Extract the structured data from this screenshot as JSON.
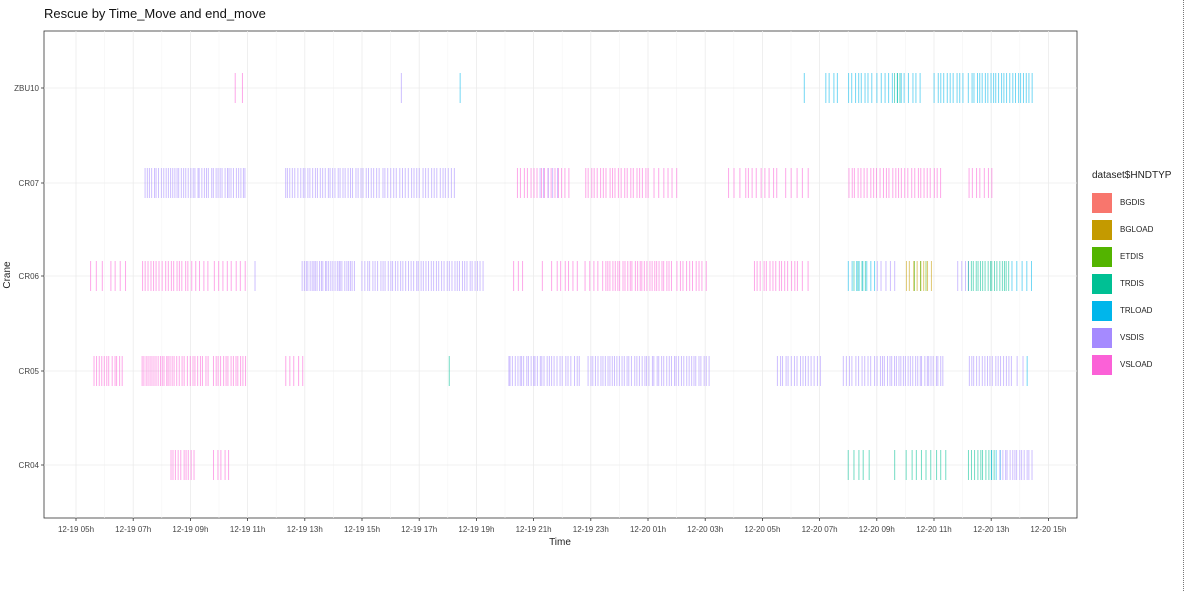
{
  "title": "Rescue by Time_Move and end_move",
  "colors": {
    "BGDIS": "#F8766D",
    "BGLOAD": "#C49A00",
    "ETDIS": "#53B400",
    "TRDIS": "#00C094",
    "TRLOAD": "#00B6EB",
    "VSDIS": "#A58AFF",
    "VSLOAD": "#FB61D7"
  },
  "chart_data": {
    "type": "bar",
    "subtype": "timeline-segments",
    "xlabel": "Time",
    "ylabel": "Crane",
    "x_ticks": [
      "12-19 05h",
      "12-19 07h",
      "12-19 09h",
      "12-19 11h",
      "12-19 13h",
      "12-19 15h",
      "12-19 17h",
      "12-19 19h",
      "12-19 21h",
      "12-19 23h",
      "12-20 01h",
      "12-20 03h",
      "12-20 05h",
      "12-20 07h",
      "12-20 09h",
      "12-20 11h",
      "12-20 13h",
      "12-20 15h"
    ],
    "xlim_hours_from_12-19_00h": [
      4,
      40
    ],
    "categories": [
      "ZBU10",
      "CR07",
      "CR06",
      "CR05",
      "CR04"
    ],
    "grid": true,
    "legend": {
      "title": "dataset$HNDTYP",
      "position": "right",
      "entries": [
        "BGDIS",
        "BGLOAD",
        "ETDIS",
        "TRDIS",
        "TRLOAD",
        "VSDIS",
        "VSLOAD"
      ]
    },
    "series": [
      {
        "crane": "ZBU10",
        "segments": [
          {
            "type": "VSLOAD",
            "start": 10.55,
            "end": 10.8,
            "count": 2
          },
          {
            "type": "VSDIS",
            "start": 16.35,
            "end": 16.4,
            "count": 1
          },
          {
            "type": "TRLOAD",
            "start": 18.4,
            "end": 18.45,
            "count": 1
          },
          {
            "type": "TRLOAD",
            "start": 30.4,
            "end": 30.5,
            "count": 1
          },
          {
            "type": "TRLOAD",
            "start": 31.2,
            "end": 31.6,
            "count": 4
          },
          {
            "type": "TRLOAD",
            "start": 32.0,
            "end": 32.8,
            "count": 8
          },
          {
            "type": "TRLOAD",
            "start": 33.0,
            "end": 34.5,
            "count": 12
          },
          {
            "type": "TRDIS",
            "start": 33.6,
            "end": 33.8,
            "count": 3
          },
          {
            "type": "TRLOAD",
            "start": 35.0,
            "end": 36.0,
            "count": 10
          },
          {
            "type": "TRLOAD",
            "start": 36.2,
            "end": 38.4,
            "count": 24
          }
        ]
      },
      {
        "crane": "CR07",
        "segments": [
          {
            "type": "VSDIS",
            "start": 7.4,
            "end": 10.9,
            "count": 45
          },
          {
            "type": "VSDIS",
            "start": 12.3,
            "end": 15.2,
            "count": 34
          },
          {
            "type": "VSDIS",
            "start": 15.3,
            "end": 18.2,
            "count": 30
          },
          {
            "type": "VSLOAD",
            "start": 20.4,
            "end": 22.2,
            "count": 16
          },
          {
            "type": "VSDIS",
            "start": 21.2,
            "end": 21.8,
            "count": 5
          },
          {
            "type": "VSLOAD",
            "start": 22.8,
            "end": 25.0,
            "count": 22
          },
          {
            "type": "VSLOAD",
            "start": 25.2,
            "end": 26.0,
            "count": 6
          },
          {
            "type": "VSLOAD",
            "start": 27.8,
            "end": 28.4,
            "count": 4
          },
          {
            "type": "VSLOAD",
            "start": 28.5,
            "end": 29.5,
            "count": 8
          },
          {
            "type": "VSLOAD",
            "start": 29.8,
            "end": 30.6,
            "count": 5
          },
          {
            "type": "VSLOAD",
            "start": 32.0,
            "end": 33.2,
            "count": 12
          },
          {
            "type": "VSLOAD",
            "start": 33.3,
            "end": 35.2,
            "count": 18
          },
          {
            "type": "VSLOAD",
            "start": 36.2,
            "end": 37.0,
            "count": 7
          }
        ]
      },
      {
        "crane": "CR06",
        "segments": [
          {
            "type": "VSLOAD",
            "start": 5.5,
            "end": 5.9,
            "count": 3
          },
          {
            "type": "VSLOAD",
            "start": 6.2,
            "end": 6.7,
            "count": 4
          },
          {
            "type": "VSLOAD",
            "start": 7.3,
            "end": 8.8,
            "count": 16
          },
          {
            "type": "VSLOAD",
            "start": 8.9,
            "end": 9.6,
            "count": 6
          },
          {
            "type": "VSLOAD",
            "start": 9.8,
            "end": 10.9,
            "count": 8
          },
          {
            "type": "VSDIS",
            "start": 11.2,
            "end": 11.3,
            "count": 1
          },
          {
            "type": "VSDIS",
            "start": 12.9,
            "end": 14.7,
            "count": 28
          },
          {
            "type": "VSDIS",
            "start": 15.0,
            "end": 19.2,
            "count": 48
          },
          {
            "type": "VSLOAD",
            "start": 20.3,
            "end": 20.6,
            "count": 3
          },
          {
            "type": "VSLOAD",
            "start": 21.3,
            "end": 21.6,
            "count": 2
          },
          {
            "type": "VSLOAD",
            "start": 21.8,
            "end": 22.5,
            "count": 6
          },
          {
            "type": "VSLOAD",
            "start": 22.8,
            "end": 23.4,
            "count": 5
          },
          {
            "type": "VSLOAD",
            "start": 23.5,
            "end": 25.8,
            "count": 28
          },
          {
            "type": "VSLOAD",
            "start": 26.0,
            "end": 27.0,
            "count": 10
          },
          {
            "type": "VSLOAD",
            "start": 28.7,
            "end": 30.1,
            "count": 14
          },
          {
            "type": "VSLOAD",
            "start": 30.2,
            "end": 30.6,
            "count": 3
          },
          {
            "type": "TRLOAD",
            "start": 32.0,
            "end": 32.9,
            "count": 8
          },
          {
            "type": "TRDIS",
            "start": 32.2,
            "end": 32.6,
            "count": 4
          },
          {
            "type": "VSDIS",
            "start": 33.0,
            "end": 33.6,
            "count": 5
          },
          {
            "type": "BGLOAD",
            "start": 34.0,
            "end": 34.9,
            "count": 8
          },
          {
            "type": "ETDIS",
            "start": 34.3,
            "end": 34.7,
            "count": 3
          },
          {
            "type": "VSDIS",
            "start": 35.8,
            "end": 36.2,
            "count": 4
          },
          {
            "type": "TRDIS",
            "start": 36.2,
            "end": 37.6,
            "count": 18
          },
          {
            "type": "TRLOAD",
            "start": 37.7,
            "end": 38.4,
            "count": 5
          }
        ]
      },
      {
        "crane": "CR05",
        "segments": [
          {
            "type": "VSLOAD",
            "start": 5.6,
            "end": 6.6,
            "count": 12
          },
          {
            "type": "VSLOAD",
            "start": 7.3,
            "end": 8.5,
            "count": 18
          },
          {
            "type": "VSLOAD",
            "start": 8.6,
            "end": 9.6,
            "count": 12
          },
          {
            "type": "VSLOAD",
            "start": 9.8,
            "end": 10.9,
            "count": 14
          },
          {
            "type": "VSLOAD",
            "start": 12.3,
            "end": 12.9,
            "count": 5
          },
          {
            "type": "TRDIS",
            "start": 18.0,
            "end": 18.05,
            "count": 1
          },
          {
            "type": "VSDIS",
            "start": 20.1,
            "end": 21.6,
            "count": 20
          },
          {
            "type": "VSDIS",
            "start": 21.7,
            "end": 22.6,
            "count": 10
          },
          {
            "type": "VSDIS",
            "start": 22.9,
            "end": 24.5,
            "count": 20
          },
          {
            "type": "VSDIS",
            "start": 24.6,
            "end": 27.1,
            "count": 30
          },
          {
            "type": "VSDIS",
            "start": 29.5,
            "end": 31.0,
            "count": 16
          },
          {
            "type": "VSDIS",
            "start": 31.8,
            "end": 33.0,
            "count": 12
          },
          {
            "type": "VSDIS",
            "start": 33.1,
            "end": 35.3,
            "count": 28
          },
          {
            "type": "VSDIS",
            "start": 36.2,
            "end": 37.6,
            "count": 16
          },
          {
            "type": "VSDIS",
            "start": 37.7,
            "end": 38.1,
            "count": 3
          },
          {
            "type": "TRLOAD",
            "start": 38.2,
            "end": 38.3,
            "count": 1
          }
        ]
      },
      {
        "crane": "CR04",
        "segments": [
          {
            "type": "VSLOAD",
            "start": 8.3,
            "end": 9.1,
            "count": 10
          },
          {
            "type": "VSLOAD",
            "start": 9.8,
            "end": 10.3,
            "count": 5
          },
          {
            "type": "TRDIS",
            "start": 32.0,
            "end": 32.7,
            "count": 5
          },
          {
            "type": "TRDIS",
            "start": 33.6,
            "end": 34.0,
            "count": 2
          },
          {
            "type": "TRDIS",
            "start": 34.2,
            "end": 35.4,
            "count": 8
          },
          {
            "type": "TRDIS",
            "start": 36.2,
            "end": 37.1,
            "count": 10
          },
          {
            "type": "TRLOAD",
            "start": 37.0,
            "end": 37.3,
            "count": 3
          },
          {
            "type": "VSDIS",
            "start": 37.3,
            "end": 38.4,
            "count": 14
          }
        ]
      }
    ]
  }
}
